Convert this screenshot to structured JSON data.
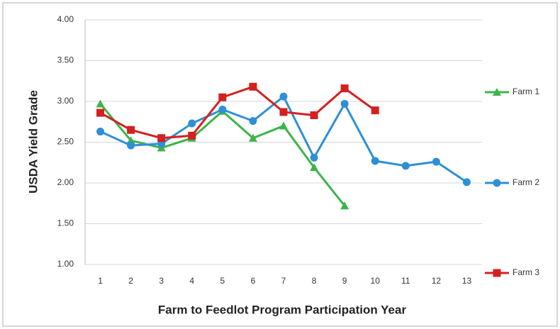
{
  "chart_data": {
    "type": "line",
    "ylabel": "USDA Yield Grade",
    "xlabel": "Farm to Feedlot Program Participation Year",
    "categories": [
      "1",
      "2",
      "3",
      "4",
      "5",
      "6",
      "7",
      "8",
      "9",
      "10",
      "11",
      "12",
      "13"
    ],
    "series": [
      {
        "name": "Farm 1",
        "color": "#3cb44b",
        "marker": "triangle",
        "values": [
          2.97,
          2.52,
          2.43,
          2.55,
          2.88,
          2.55,
          2.7,
          2.19,
          1.72,
          null,
          null,
          null,
          null
        ]
      },
      {
        "name": "Farm 2",
        "color": "#2e8fd6",
        "marker": "circle",
        "values": [
          2.63,
          2.46,
          2.48,
          2.73,
          2.9,
          2.76,
          3.06,
          2.31,
          2.97,
          2.27,
          2.21,
          2.26,
          2.01
        ]
      },
      {
        "name": "Farm 3",
        "color": "#d42020",
        "marker": "square",
        "values": [
          2.86,
          2.65,
          2.55,
          2.58,
          3.05,
          3.18,
          2.87,
          2.83,
          3.16,
          2.89,
          null,
          null,
          null
        ]
      }
    ],
    "ylim": [
      1,
      4
    ],
    "yticks": [
      {
        "value": 1,
        "label": "1.00"
      },
      {
        "value": 1.5,
        "label": "1.50"
      },
      {
        "value": 2,
        "label": "2.00"
      },
      {
        "value": 2.5,
        "label": "2.50"
      },
      {
        "value": 3,
        "label": "3.00"
      },
      {
        "value": 3.5,
        "label": "3.50"
      },
      {
        "value": 4,
        "label": "4.00"
      }
    ],
    "grid": true
  }
}
